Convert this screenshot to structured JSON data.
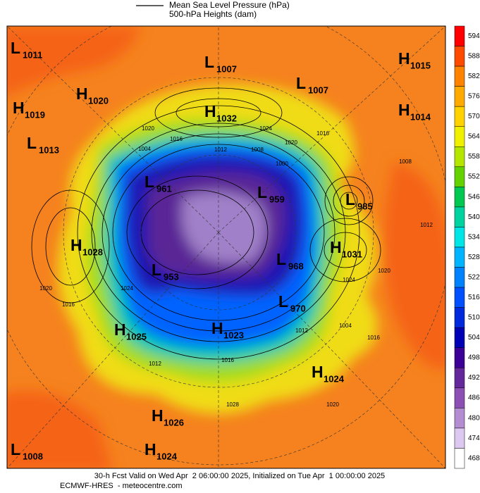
{
  "legend": {
    "lines": [
      "Mean Sea Level Pressure (hPa)",
      "500-hPa Heights (dam)"
    ]
  },
  "colorbar": {
    "ticks": [
      594,
      588,
      582,
      576,
      570,
      564,
      558,
      552,
      546,
      540,
      534,
      528,
      522,
      516,
      510,
      504,
      498,
      492,
      486,
      480,
      474,
      468
    ]
  },
  "centers": [
    {
      "type": "L",
      "value": 1011
    },
    {
      "type": "L",
      "value": 1007
    },
    {
      "type": "L",
      "value": 1007
    },
    {
      "type": "H",
      "value": 1015
    },
    {
      "type": "H",
      "value": 1020
    },
    {
      "type": "H",
      "value": 1019
    },
    {
      "type": "H",
      "value": 1032
    },
    {
      "type": "H",
      "value": 1014
    },
    {
      "type": "L",
      "value": 1013
    },
    {
      "type": "L",
      "value": 961
    },
    {
      "type": "L",
      "value": 959
    },
    {
      "type": "L",
      "value": 985
    },
    {
      "type": "H",
      "value": 1028
    },
    {
      "type": "H",
      "value": 1031
    },
    {
      "type": "L",
      "value": 968
    },
    {
      "type": "L",
      "value": 953
    },
    {
      "type": "L",
      "value": 970
    },
    {
      "type": "H",
      "value": 1025
    },
    {
      "type": "H",
      "value": 1023
    },
    {
      "type": "H",
      "value": 1024
    },
    {
      "type": "H",
      "value": 1026
    },
    {
      "type": "L",
      "value": 1008
    },
    {
      "type": "H",
      "value": 1024
    }
  ],
  "contour_labels": [
    1020,
    1016,
    1004,
    1012,
    1008,
    1024,
    1020,
    1016,
    1000,
    1008,
    1012,
    1020,
    1024,
    1004,
    1012,
    1016,
    1020,
    1020,
    1016,
    1024,
    1016,
    1028,
    1012
  ],
  "footer": {
    "valid": "30-h Fcst Valid on Wed Apr  2 06:00:00 2025, Initialized on Tue Apr  1 00:00:00 2025",
    "source": "ECMWF-HRES  - meteocentre.com"
  }
}
